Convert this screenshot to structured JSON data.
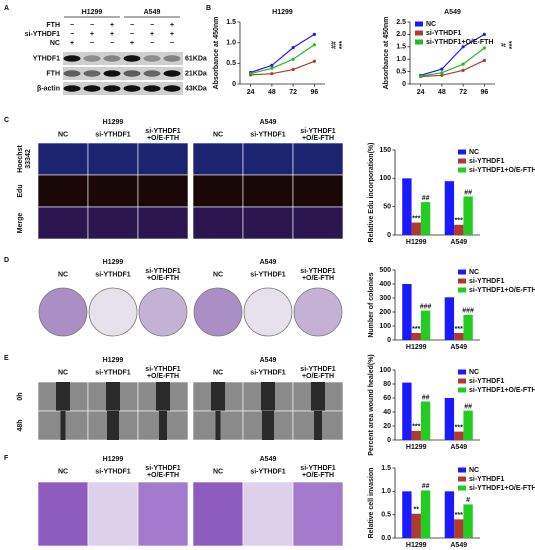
{
  "panel_letters": [
    "A",
    "B",
    "C",
    "D",
    "E",
    "F"
  ],
  "blot": {
    "cell_lines": [
      "H1299",
      "A549"
    ],
    "conditions": [
      {
        "name": "FTH",
        "signs": [
          "−",
          "−",
          "+"
        ]
      },
      {
        "name": "si-YTHDF1",
        "signs": [
          "−",
          "+",
          "+"
        ]
      },
      {
        "name": "NC",
        "signs": [
          "+",
          "−",
          "−"
        ]
      }
    ],
    "bands": [
      {
        "name": "YTHDF1",
        "size": "61KDa"
      },
      {
        "name": "FTH",
        "size": "21KDa"
      },
      {
        "name": "β-actin",
        "size": "43KDa"
      }
    ]
  },
  "image_panels": [
    {
      "cell_lines": [
        "H1299",
        "A549"
      ],
      "columns": [
        [
          "NC"
        ],
        [
          "si-YTHDF1"
        ],
        [
          "si-YTHDF1",
          "+O/E-FTH"
        ]
      ],
      "rows": [
        [
          "Hoechst",
          "33342"
        ],
        [
          "Edu"
        ],
        [
          "Merge"
        ]
      ]
    },
    {
      "cell_lines": [
        "H1299",
        "A549"
      ],
      "columns": [
        [
          "NC"
        ],
        [
          "si-YTHDF1"
        ],
        [
          "si-YTHDF1",
          "+O/E-FTH"
        ]
      ]
    },
    {
      "cell_lines": [
        "H1299",
        "A549"
      ],
      "columns": [
        [
          "NC"
        ],
        [
          "si-YTHDF1"
        ],
        [
          "si-YTHDF1",
          "+O/E-FTH"
        ]
      ],
      "rows": [
        [
          "0h"
        ],
        [
          "48h"
        ]
      ]
    },
    {
      "cell_lines": [
        "H1299",
        "A549"
      ],
      "columns": [
        [
          "NC"
        ],
        [
          "si-YTHDF1"
        ],
        [
          "si-YTHDF1",
          "+O/E-FTH"
        ]
      ]
    }
  ],
  "chart_data": [
    {
      "type": "line",
      "title": "H1299",
      "y_label": "Absorbance at 450nm",
      "x": [
        24,
        48,
        72,
        96
      ],
      "xlim": [
        12,
        108
      ],
      "xticks": [
        24,
        48,
        72,
        96
      ],
      "ylim": [
        0,
        1.5
      ],
      "yticks": [
        0,
        0.5,
        {
          "value": 1,
          "label": "1.0"
        },
        1.5
      ],
      "annotations": [
        "***",
        "##"
      ],
      "series": [
        {
          "name": "NC",
          "color": "#1a1aff",
          "values": [
            0.28,
            0.45,
            0.88,
            1.2
          ]
        },
        {
          "name": "si-YTHDF1",
          "color": "#b03a2e",
          "values": [
            0.22,
            0.25,
            0.35,
            0.55
          ]
        },
        {
          "name": "si-YTHDF1+O/E-FTH",
          "color": "#22bb22",
          "values": [
            0.25,
            0.38,
            0.6,
            0.95
          ]
        }
      ]
    },
    {
      "type": "line",
      "title": "A549",
      "y_label": "Absorbance at 450nm",
      "x": [
        24,
        48,
        72,
        96
      ],
      "xlim": [
        12,
        108
      ],
      "xticks": [
        24,
        48,
        72,
        96
      ],
      "ylim": [
        0,
        2.5
      ],
      "yticks": [
        0,
        0.5,
        {
          "value": 1,
          "label": "1.0"
        },
        1.5,
        {
          "value": 2,
          "label": "2.0"
        },
        2.5
      ],
      "annotations": [
        "***",
        "#"
      ],
      "legend": "upper left",
      "series": [
        {
          "name": "NC",
          "color": "#1a1aff",
          "values": [
            0.35,
            0.6,
            1.5,
            2.0
          ]
        },
        {
          "name": "si-YTHDF1",
          "color": "#b03a2e",
          "values": [
            0.3,
            0.35,
            0.55,
            0.95
          ]
        },
        {
          "name": "si-YTHDF1+O/E-FTH",
          "color": "#22bb22",
          "values": [
            0.32,
            0.45,
            0.8,
            1.45
          ]
        }
      ]
    },
    {
      "type": "bar",
      "y_label": "Relative Edu incorporation(%)",
      "categories": [
        "H1299",
        "A549"
      ],
      "ylim": [
        0,
        150
      ],
      "yticks": [
        0,
        50,
        100,
        150
      ],
      "legend": "upper right",
      "series": [
        {
          "name": "NC",
          "color": "#1a1aff",
          "values": [
            100,
            95
          ]
        },
        {
          "name": "si-YTHDF1",
          "color": "#b03a2e",
          "values": [
            22,
            18
          ],
          "annotations": [
            "***",
            "***"
          ]
        },
        {
          "name": "si-YTHDF1+O/E-FTH",
          "color": "#22cc22",
          "values": [
            58,
            68
          ],
          "annotations": [
            "##",
            "##"
          ]
        }
      ]
    },
    {
      "type": "bar",
      "y_label": "Number of colonies",
      "categories": [
        "H1299",
        "A549"
      ],
      "ylim": [
        0,
        500
      ],
      "yticks": [
        0,
        100,
        200,
        300,
        400,
        500
      ],
      "legend": "upper right",
      "series": [
        {
          "name": "NC",
          "color": "#1a1aff",
          "values": [
            400,
            305
          ]
        },
        {
          "name": "si-YTHDF1",
          "color": "#b03a2e",
          "values": [
            50,
            50
          ],
          "annotations": [
            "***",
            "***"
          ]
        },
        {
          "name": "si-YTHDF1+O/E-FTH",
          "color": "#22cc22",
          "values": [
            210,
            180
          ],
          "annotations": [
            "###",
            "###"
          ]
        }
      ]
    },
    {
      "type": "bar",
      "y_label": "Percent area wound healed(%)",
      "categories": [
        "H1299",
        "A549"
      ],
      "ylim": [
        0,
        100
      ],
      "yticks": [
        0,
        20,
        40,
        60,
        80,
        100
      ],
      "legend": "upper right",
      "series": [
        {
          "name": "NC",
          "color": "#1a1aff",
          "values": [
            82,
            60
          ]
        },
        {
          "name": "si-YTHDF1",
          "color": "#b03a2e",
          "values": [
            13,
            12
          ],
          "annotations": [
            "***",
            "***"
          ]
        },
        {
          "name": "si-YTHDF1+O/E-FTH",
          "color": "#22cc22",
          "values": [
            55,
            42
          ],
          "annotations": [
            "##",
            "##"
          ]
        }
      ]
    },
    {
      "type": "bar",
      "y_label": "Relative cell invasion",
      "categories": [
        "H1299",
        "A549"
      ],
      "ylim": [
        0,
        1.5
      ],
      "yticks": [
        {
          "value": 0,
          "label": "0.0"
        },
        0.5,
        {
          "value": 1,
          "label": "1.0"
        },
        1.5
      ],
      "legend": "upper right",
      "series": [
        {
          "name": "NC",
          "color": "#1a1aff",
          "values": [
            1.0,
            1.0
          ]
        },
        {
          "name": "si-YTHDF1",
          "color": "#b03a2e",
          "values": [
            0.52,
            0.4
          ],
          "annotations": [
            "**",
            "***"
          ]
        },
        {
          "name": "si-YTHDF1+O/E-FTH",
          "color": "#22cc22",
          "values": [
            1.02,
            0.72
          ],
          "annotations": [
            "##",
            "#"
          ]
        }
      ]
    }
  ]
}
